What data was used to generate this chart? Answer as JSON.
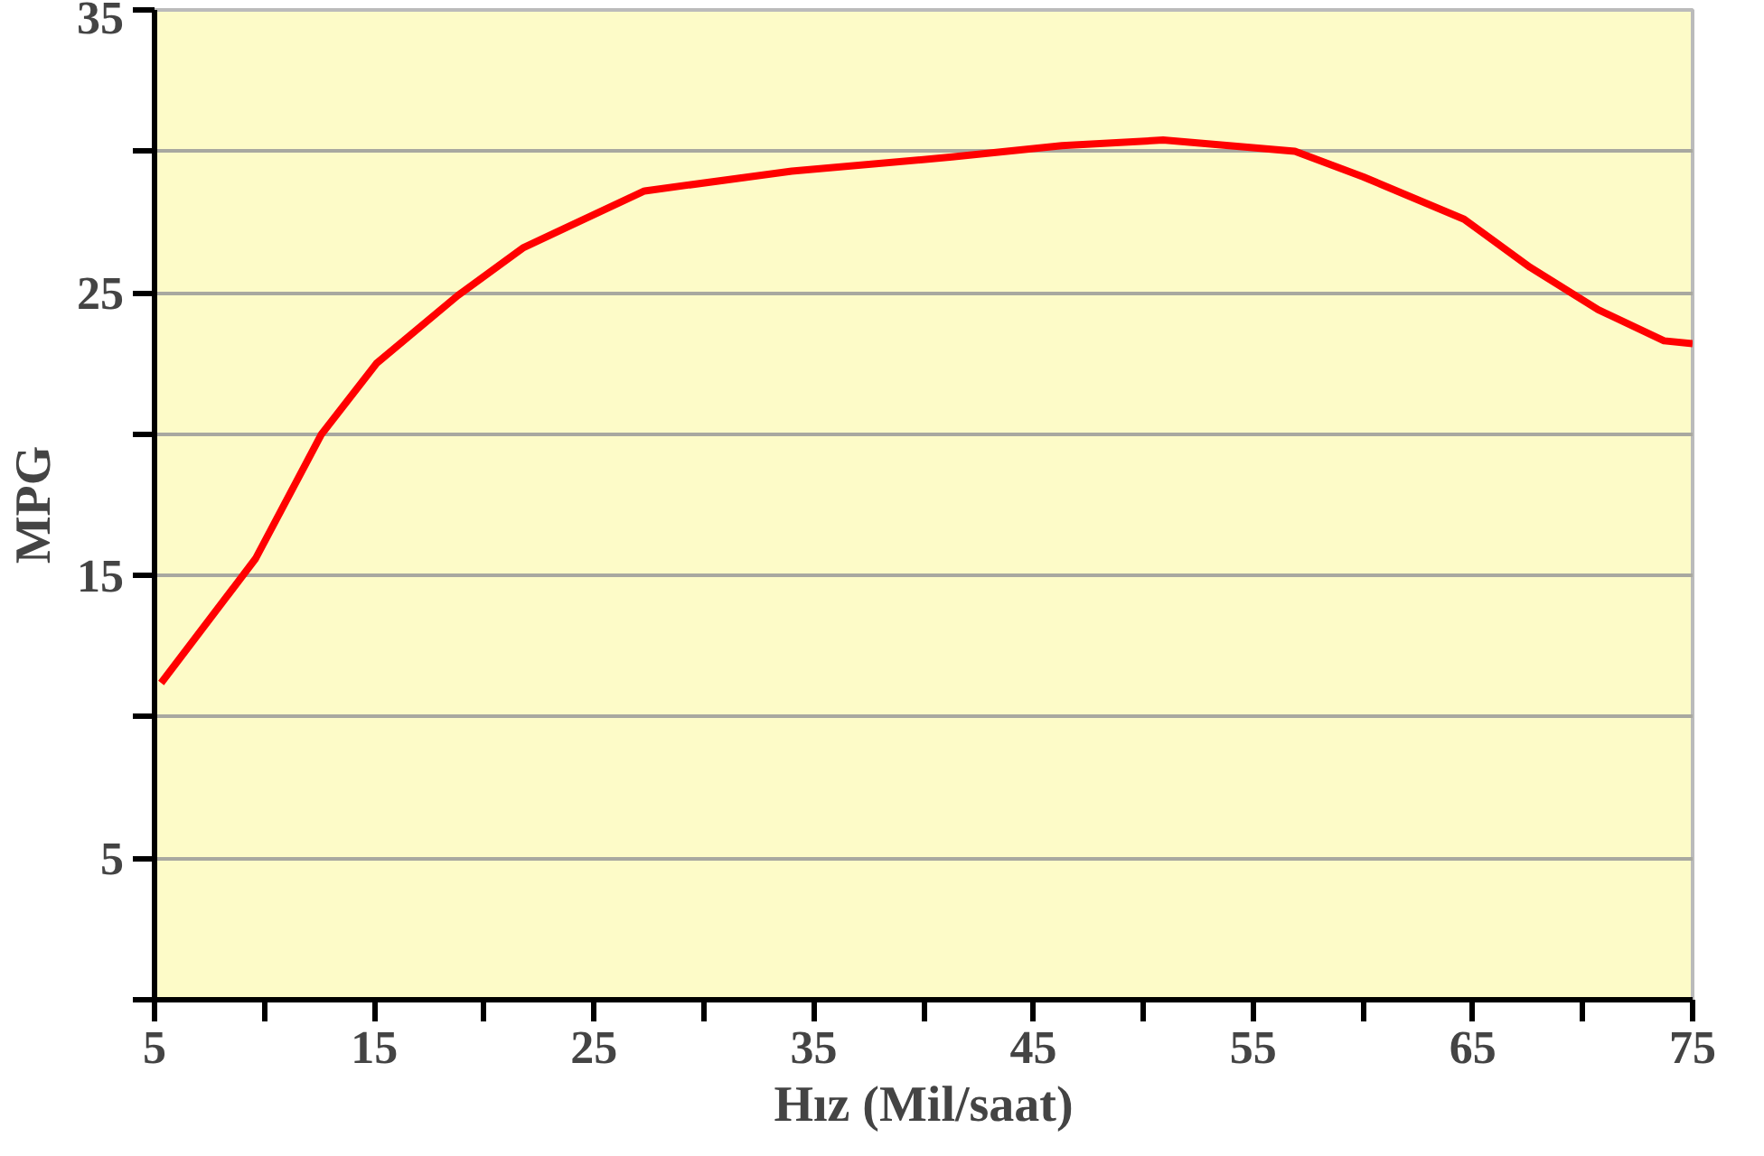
{
  "chart_data": {
    "type": "line",
    "xlabel": "Hız (Mil/saat)",
    "ylabel": "MPG",
    "x": [
      5.3,
      9.6,
      12.6,
      15.1,
      18.8,
      21.8,
      27.3,
      34,
      41.3,
      46.3,
      50.9,
      56.9,
      60,
      64.6,
      67.6,
      70.7,
      73.7,
      75
    ],
    "series": [
      {
        "color": "#ff0000",
        "values": [
          11.2,
          15.6,
          20.0,
          22.5,
          24.9,
          26.6,
          28.6,
          29.3,
          29.8,
          30.2,
          30.4,
          30.0,
          29.1,
          27.6,
          25.9,
          24.4,
          23.3,
          23.2
        ]
      }
    ],
    "xlim": [
      5,
      75
    ],
    "ylim": [
      0,
      35
    ],
    "xticks": [
      5,
      {
        "value": 10,
        "label": null
      },
      15,
      {
        "value": 20,
        "label": null
      },
      25,
      {
        "value": 30,
        "label": null
      },
      35,
      {
        "value": 40,
        "label": null
      },
      45,
      {
        "value": 50,
        "label": null
      },
      55,
      {
        "value": 60,
        "label": null
      },
      65,
      {
        "value": 70,
        "label": null
      },
      75
    ],
    "yticks": [
      {
        "value": 0,
        "label": null
      },
      5,
      {
        "value": 10,
        "label": null
      },
      15,
      {
        "value": 20,
        "label": null
      },
      25,
      {
        "value": 30,
        "label": null
      },
      35
    ],
    "grid": "y",
    "line_style": "solid"
  }
}
